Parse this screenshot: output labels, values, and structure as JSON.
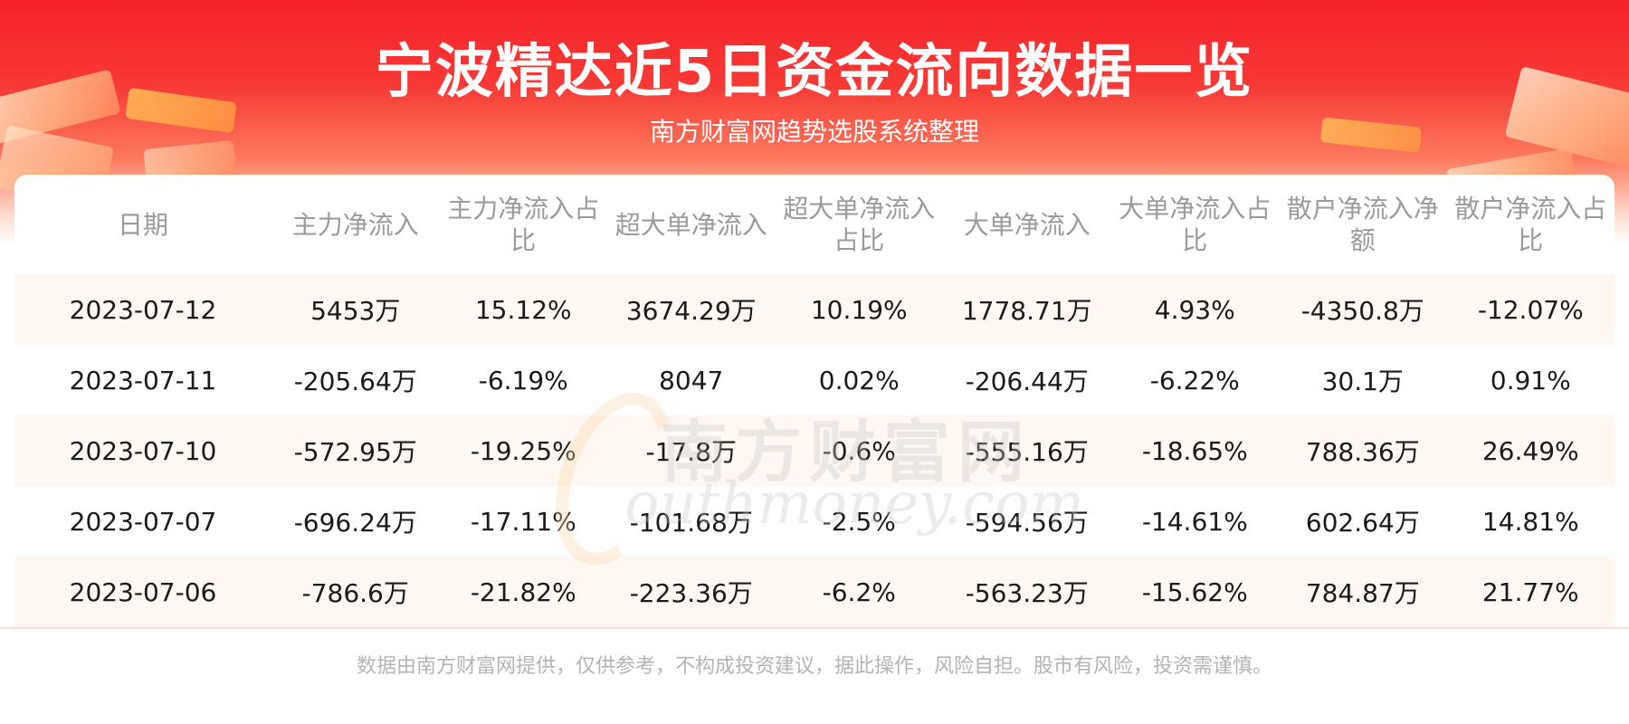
{
  "header": {
    "title": "宁波精达近5日资金流向数据一览",
    "subtitle": "南方财富网趋势选股系统整理"
  },
  "table": {
    "columns": [
      "日期",
      "主力净流入",
      "主力净流入占比",
      "超大单净流入",
      "超大单净流入占比",
      "大单净流入",
      "大单净流入占比",
      "散户净流入净额",
      "散户净流入占比"
    ],
    "rows": [
      [
        "2023-07-12",
        "5453万",
        "15.12%",
        "3674.29万",
        "10.19%",
        "1778.71万",
        "4.93%",
        "-4350.8万",
        "-12.07%"
      ],
      [
        "2023-07-11",
        "-205.64万",
        "-6.19%",
        "8047",
        "0.02%",
        "-206.44万",
        "-6.22%",
        "30.1万",
        "0.91%"
      ],
      [
        "2023-07-10",
        "-572.95万",
        "-19.25%",
        "-17.8万",
        "-0.6%",
        "-555.16万",
        "-18.65%",
        "788.36万",
        "26.49%"
      ],
      [
        "2023-07-07",
        "-696.24万",
        "-17.11%",
        "-101.68万",
        "-2.5%",
        "-594.56万",
        "-14.61%",
        "602.64万",
        "14.81%"
      ],
      [
        "2023-07-06",
        "-786.6万",
        "-21.82%",
        "-223.36万",
        "-6.2%",
        "-563.23万",
        "-15.62%",
        "784.87万",
        "21.77%"
      ]
    ]
  },
  "watermark": {
    "cn": "南方财富网",
    "en": "outhmoney.com"
  },
  "footer": {
    "disclaimer": "数据由南方财富网提供，仅供参考，不构成投资建议，据此操作，风险自担。股市有风险，投资需谨慎。"
  },
  "colors": {
    "banner_red": "#f5222b",
    "row_stripe": "#fff7f2",
    "header_text": "#9a9a9a"
  }
}
